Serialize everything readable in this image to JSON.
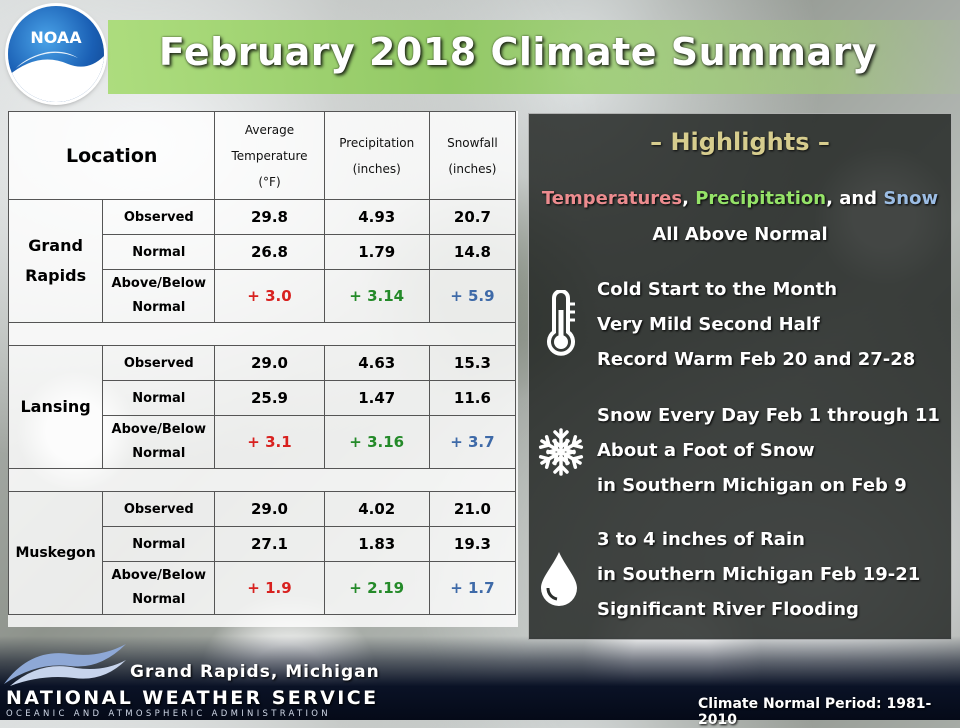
{
  "header": {
    "logo_text": "NOAA",
    "title": "February 2018 Climate Summary"
  },
  "table": {
    "headers": {
      "location": "Location",
      "temp": [
        "Average",
        "Temperature",
        "(°F)"
      ],
      "precip": [
        "Precipitation",
        "(inches)"
      ],
      "snow": [
        "Snowfall",
        "(inches)"
      ]
    },
    "row_labels": {
      "observed": "Observed",
      "normal": "Normal",
      "departure": [
        "Above/Below",
        "Normal"
      ]
    },
    "locations": [
      {
        "name": [
          "Grand",
          "Rapids"
        ],
        "observed": [
          "29.8",
          "4.93",
          "20.7"
        ],
        "normal": [
          "26.8",
          "1.79",
          "14.8"
        ],
        "departure": [
          "+ 3.0",
          "+ 3.14",
          "+ 5.9"
        ]
      },
      {
        "name": [
          "Lansing"
        ],
        "observed": [
          "29.0",
          "4.63",
          "15.3"
        ],
        "normal": [
          "25.9",
          "1.47",
          "11.6"
        ],
        "departure": [
          "+ 3.1",
          "+ 3.16",
          "+ 3.7"
        ]
      },
      {
        "name": [
          "Muskegon"
        ],
        "observed": [
          "29.0",
          "4.02",
          "21.0"
        ],
        "normal": [
          "27.1",
          "1.83",
          "19.3"
        ],
        "departure": [
          "+ 1.9",
          "+ 2.19",
          "+ 1.7"
        ]
      }
    ]
  },
  "highlights": {
    "title": "– Highlights –",
    "summary": {
      "temp": "Temperatures",
      "sep1": ", ",
      "precip": "Precipitation",
      "sep2": ", and ",
      "snow": "Snow",
      "line2": "All Above Normal"
    },
    "blocks": [
      {
        "icon": "thermometer-icon",
        "lines": [
          "Cold Start to the Month",
          "Very Mild Second Half",
          "Record Warm Feb 20 and 27-28"
        ]
      },
      {
        "icon": "snowflake-icon",
        "lines": [
          "Snow Every Day Feb 1 through 11",
          "About a Foot of Snow",
          "in Southern Michigan on Feb 9"
        ]
      },
      {
        "icon": "raindrop-icon",
        "lines": [
          "3 to 4 inches of Rain",
          "in Southern Michigan Feb 19-21",
          "Significant River Flooding"
        ]
      }
    ]
  },
  "footer": {
    "office": "Grand Rapids, Michigan",
    "agency": "NATIONAL WEATHER SERVICE",
    "parent": "OCEANIC AND ATMOSPHERIC ADMINISTRATION",
    "normal_period": "Climate Normal Period: 1981-2010"
  },
  "colors": {
    "above_temp": "#d8211f",
    "above_precip": "#248a29",
    "above_snow": "#3e6aa8",
    "highlight_title": "#d7cd8e",
    "header_bar": "#8cc85a"
  }
}
